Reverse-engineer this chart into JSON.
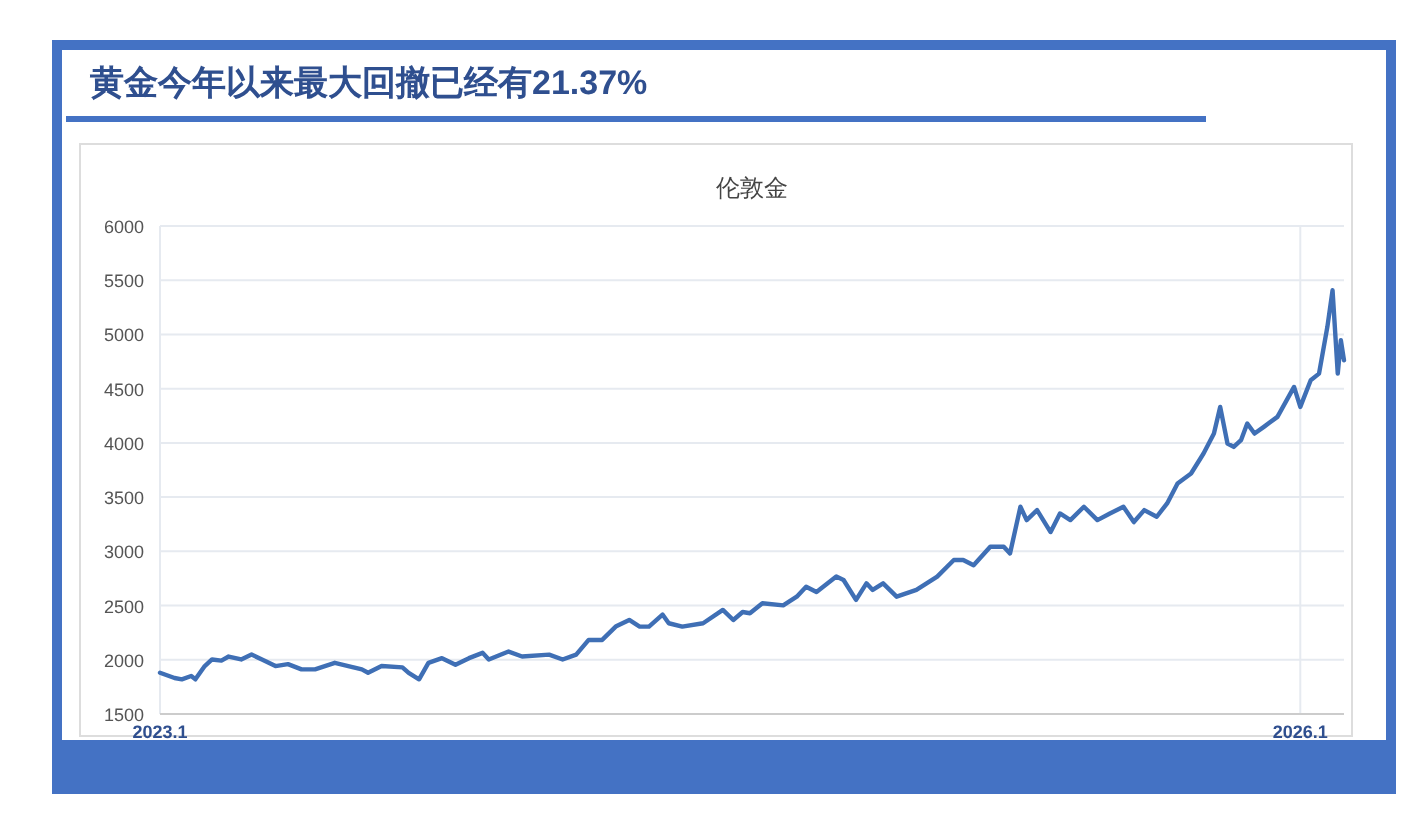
{
  "chart_data": {
    "type": "line",
    "title": "黄金今年以来最大回撤已经有21.37%",
    "subtitle": "伦敦金",
    "x": [
      "2023-01-03",
      "2023-01-17",
      "2023-01-24",
      "2023-02-02",
      "2023-02-06",
      "2023-02-15",
      "2023-02-22",
      "2023-03-03",
      "2023-03-10",
      "2023-03-22",
      "2023-04-01",
      "2023-04-11",
      "2023-04-24",
      "2023-05-06",
      "2023-05-19",
      "2023-06-01",
      "2023-06-20",
      "2023-07-16",
      "2023-07-22",
      "2023-08-04",
      "2023-08-24",
      "2023-08-30",
      "2023-09-09",
      "2023-09-18",
      "2023-10-01",
      "2023-10-14",
      "2023-10-27",
      "2023-11-09",
      "2023-11-15",
      "2023-12-04",
      "2023-12-17",
      "2024-01-12",
      "2024-01-25",
      "2024-02-07",
      "2024-02-19",
      "2024-03-03",
      "2024-03-16",
      "2024-03-29",
      "2024-04-08",
      "2024-04-17",
      "2024-04-30",
      "2024-05-06",
      "2024-05-19",
      "2024-06-08",
      "2024-06-27",
      "2024-07-07",
      "2024-07-16",
      "2024-07-23",
      "2024-08-04",
      "2024-08-24",
      "2024-09-06",
      "2024-09-15",
      "2024-09-25",
      "2024-10-14",
      "2024-10-21",
      "2024-11-02",
      "2024-11-12",
      "2024-11-18",
      "2024-11-28",
      "2024-12-11",
      "2024-12-30",
      "2025-01-19",
      "2025-02-04",
      "2025-02-13",
      "2025-02-23",
      "2025-03-11",
      "2025-03-24",
      "2025-03-30",
      "2025-04-09",
      "2025-04-15",
      "2025-04-25",
      "2025-05-08",
      "2025-05-17",
      "2025-05-27",
      "2025-06-09",
      "2025-06-22",
      "2025-07-04",
      "2025-07-17",
      "2025-07-27",
      "2025-08-06",
      "2025-08-18",
      "2025-08-28",
      "2025-09-07",
      "2025-09-20",
      "2025-10-02",
      "2025-10-12",
      "2025-10-18",
      "2025-10-25",
      "2025-10-31",
      "2025-11-07",
      "2025-11-13",
      "2025-11-20",
      "2025-11-29",
      "2025-12-12",
      "2025-12-28",
      "2026-01-03",
      "2026-01-13",
      "2026-01-21",
      "2026-01-29",
      "2026-02-03",
      "2026-02-08",
      "2026-02-11",
      "2026-02-14"
    ],
    "series": [
      {
        "color": "#3f6fb5",
        "values": [
          1880,
          1832,
          1820,
          1850,
          1820,
          1942,
          2003,
          1992,
          2030,
          2003,
          2048,
          2003,
          1942,
          1960,
          1911,
          1911,
          1972,
          1911,
          1880,
          1942,
          1930,
          1880,
          1820,
          1972,
          2015,
          1954,
          2015,
          2064,
          2003,
          2076,
          2030,
          2048,
          2003,
          2048,
          2183,
          2183,
          2306,
          2367,
          2306,
          2306,
          2417,
          2337,
          2306,
          2337,
          2460,
          2367,
          2441,
          2429,
          2521,
          2502,
          2582,
          2674,
          2625,
          2767,
          2736,
          2552,
          2705,
          2644,
          2705,
          2582,
          2644,
          2767,
          2920,
          2920,
          2871,
          3043,
          3043,
          2981,
          3411,
          3288,
          3380,
          3178,
          3349,
          3288,
          3411,
          3288,
          3349,
          3411,
          3270,
          3380,
          3319,
          3442,
          3626,
          3718,
          3902,
          4086,
          4332,
          3994,
          3963,
          4025,
          4179,
          4086,
          4148,
          4240,
          4516,
          4332,
          4578,
          4639,
          5069,
          5407,
          4639,
          4946,
          4762
        ]
      }
    ],
    "xlim": [
      "2023-01-03",
      "2026-02-14"
    ],
    "xticks": [
      {
        "value": "2023-01-03",
        "label": "2023.1"
      },
      {
        "value": "2026-01-03",
        "label": "2026.1"
      }
    ],
    "ylim": [
      1500,
      6000
    ],
    "yticks": [
      1500,
      2000,
      2500,
      3000,
      3500,
      4000,
      4500,
      5000,
      5500,
      6000
    ],
    "grid": true
  }
}
